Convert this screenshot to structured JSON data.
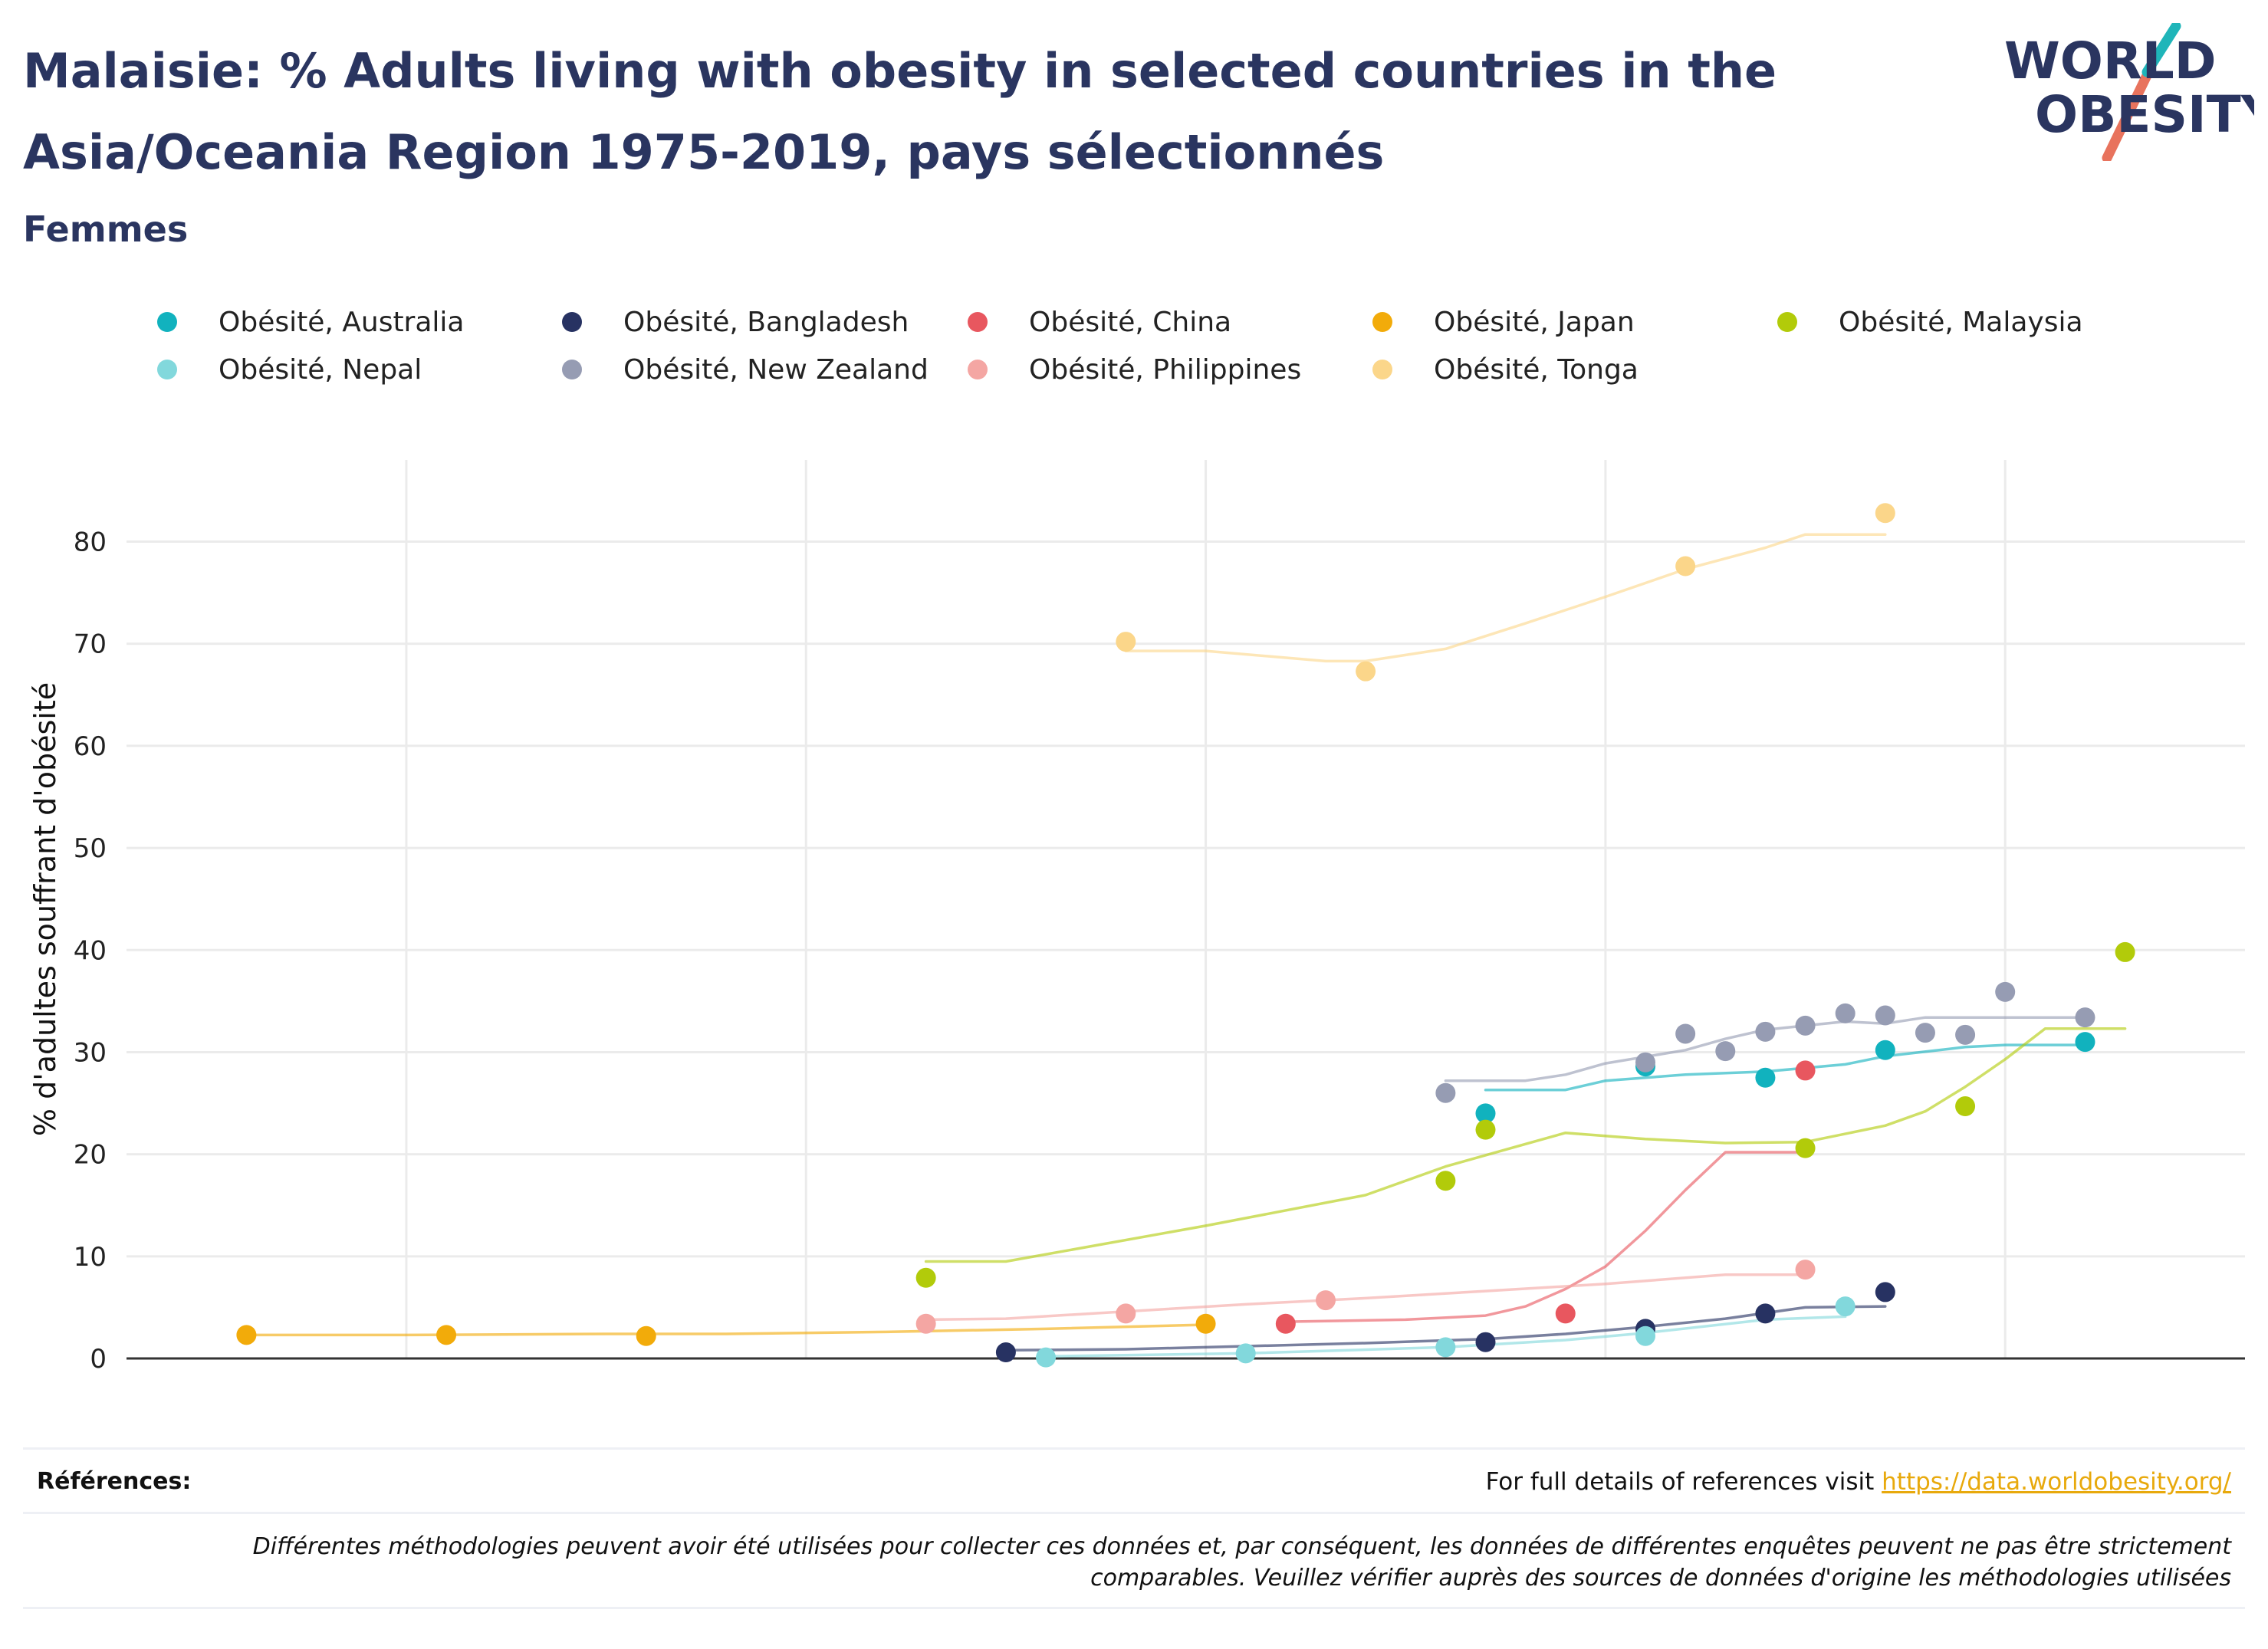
{
  "header": {
    "title": "Malaisie: % Adults living with obesity in selected countries in the Asia/Oceania Region 1975-2019, pays sélectionnés",
    "subtitle": "Femmes",
    "logo_line1": "WORLD",
    "logo_line2": "OBESITY"
  },
  "colors": {
    "title": "#2a3560",
    "logo_teal": "#1fb5b9",
    "logo_coral": "#e8735d",
    "link": "#e8a90c"
  },
  "chart_data": {
    "type": "scatter",
    "title": "",
    "xlabel": "",
    "ylabel": "% d'adultes souffrant d'obésité",
    "xlim": [
      1973,
      2026
    ],
    "ylim": [
      0,
      88
    ],
    "xticks": [
      1980,
      1990,
      2000,
      2010,
      2020
    ],
    "yticks": [
      0,
      10,
      20,
      30,
      40,
      50,
      60,
      70,
      80
    ],
    "grid": true,
    "legend_position": "top",
    "series": [
      {
        "name": "Obésité, Australia",
        "color": "#11b2be",
        "points": [
          [
            2007,
            24.0
          ],
          [
            2011,
            28.6
          ],
          [
            2014,
            27.5
          ],
          [
            2017,
            30.2
          ],
          [
            2022,
            31.0
          ]
        ],
        "trend": [
          [
            2007,
            26.3
          ],
          [
            2009,
            26.3
          ],
          [
            2010,
            27.2
          ],
          [
            2012,
            27.8
          ],
          [
            2014,
            28.1
          ],
          [
            2016,
            28.8
          ],
          [
            2017,
            29.6
          ],
          [
            2019,
            30.5
          ],
          [
            2020,
            30.7
          ],
          [
            2022,
            30.7
          ]
        ]
      },
      {
        "name": "Obésité, Bangladesh",
        "color": "#273262",
        "points": [
          [
            1995,
            0.6
          ],
          [
            2007,
            1.6
          ],
          [
            2011,
            2.9
          ],
          [
            2014,
            4.4
          ],
          [
            2017,
            6.5
          ]
        ],
        "trend": [
          [
            1995,
            0.8
          ],
          [
            1998,
            0.9
          ],
          [
            2001,
            1.2
          ],
          [
            2004,
            1.5
          ],
          [
            2007,
            1.9
          ],
          [
            2009,
            2.4
          ],
          [
            2011,
            3.1
          ],
          [
            2013,
            3.9
          ],
          [
            2015,
            5.0
          ],
          [
            2017,
            5.1
          ]
        ]
      },
      {
        "name": "Obésité, China",
        "color": "#e8575f",
        "points": [
          [
            2002,
            3.4
          ],
          [
            2009,
            4.4
          ],
          [
            2015,
            28.2
          ]
        ],
        "trend": [
          [
            2002,
            3.6
          ],
          [
            2005,
            3.8
          ],
          [
            2007,
            4.2
          ],
          [
            2008,
            5.1
          ],
          [
            2009,
            6.8
          ],
          [
            2010,
            9.0
          ],
          [
            2011,
            12.5
          ],
          [
            2012,
            16.5
          ],
          [
            2013,
            20.2
          ],
          [
            2015,
            20.2
          ]
        ]
      },
      {
        "name": "Obésité, Japan",
        "color": "#f2ab0a",
        "points": [
          [
            1976,
            2.3
          ],
          [
            1981,
            2.3
          ],
          [
            1986,
            2.2
          ],
          [
            2000,
            3.4
          ]
        ],
        "trend": [
          [
            1976,
            2.3
          ],
          [
            1980,
            2.3
          ],
          [
            1985,
            2.4
          ],
          [
            1988,
            2.4
          ],
          [
            1992,
            2.6
          ],
          [
            1996,
            2.9
          ],
          [
            2000,
            3.3
          ]
        ]
      },
      {
        "name": "Obésité, Malaysia",
        "color": "#b2cb0a",
        "points": [
          [
            1993,
            7.9
          ],
          [
            2006,
            17.4
          ],
          [
            2007,
            22.4
          ],
          [
            2015,
            20.6
          ],
          [
            2019,
            24.7
          ],
          [
            2023,
            39.8
          ]
        ],
        "trend": [
          [
            1993,
            9.5
          ],
          [
            1995,
            9.5
          ],
          [
            2000,
            13.0
          ],
          [
            2004,
            16.0
          ],
          [
            2006,
            18.8
          ],
          [
            2008,
            21.0
          ],
          [
            2009,
            22.1
          ],
          [
            2011,
            21.5
          ],
          [
            2013,
            21.1
          ],
          [
            2015,
            21.2
          ],
          [
            2017,
            22.8
          ],
          [
            2018,
            24.2
          ],
          [
            2019,
            26.6
          ],
          [
            2020,
            29.3
          ],
          [
            2021,
            32.3
          ],
          [
            2023,
            32.3
          ]
        ]
      },
      {
        "name": "Obésité, Nepal",
        "color": "#82d8dc",
        "points": [
          [
            1996,
            0.1
          ],
          [
            2001,
            0.5
          ],
          [
            2006,
            1.1
          ],
          [
            2011,
            2.2
          ],
          [
            2016,
            5.1
          ]
        ],
        "trend": [
          [
            1996,
            0.2
          ],
          [
            2001,
            0.5
          ],
          [
            2006,
            1.1
          ],
          [
            2009,
            1.8
          ],
          [
            2011,
            2.5
          ],
          [
            2014,
            3.8
          ],
          [
            2016,
            4.1
          ]
        ]
      },
      {
        "name": "Obésité, New Zealand",
        "color": "#969cb3",
        "points": [
          [
            2006,
            26.0
          ],
          [
            2011,
            29.0
          ],
          [
            2012,
            31.8
          ],
          [
            2013,
            30.1
          ],
          [
            2014,
            32.0
          ],
          [
            2015,
            32.6
          ],
          [
            2016,
            33.8
          ],
          [
            2017,
            33.6
          ],
          [
            2018,
            31.9
          ],
          [
            2019,
            31.7
          ],
          [
            2020,
            35.9
          ],
          [
            2022,
            33.4
          ]
        ],
        "trend": [
          [
            2006,
            27.2
          ],
          [
            2008,
            27.2
          ],
          [
            2009,
            27.8
          ],
          [
            2010,
            28.9
          ],
          [
            2012,
            30.2
          ],
          [
            2013,
            31.3
          ],
          [
            2014,
            32.2
          ],
          [
            2016,
            33.0
          ],
          [
            2017,
            32.8
          ],
          [
            2018,
            33.4
          ],
          [
            2020,
            33.4
          ],
          [
            2022,
            33.4
          ]
        ]
      },
      {
        "name": "Obésité, Philippines",
        "color": "#f4a6a3",
        "points": [
          [
            1993,
            3.4
          ],
          [
            1998,
            4.4
          ],
          [
            2003,
            5.7
          ],
          [
            2015,
            8.7
          ]
        ],
        "trend": [
          [
            1993,
            3.8
          ],
          [
            1995,
            3.9
          ],
          [
            1998,
            4.6
          ],
          [
            2001,
            5.3
          ],
          [
            2004,
            5.9
          ],
          [
            2007,
            6.6
          ],
          [
            2010,
            7.3
          ],
          [
            2013,
            8.2
          ],
          [
            2015,
            8.2
          ]
        ]
      },
      {
        "name": "Obésité, Tonga",
        "color": "#fbd68a",
        "points": [
          [
            1998,
            70.2
          ],
          [
            2004,
            67.3
          ],
          [
            2012,
            77.6
          ],
          [
            2017,
            82.8
          ]
        ],
        "trend": [
          [
            1998,
            69.3
          ],
          [
            2000,
            69.3
          ],
          [
            2003,
            68.3
          ],
          [
            2004,
            68.3
          ],
          [
            2006,
            69.5
          ],
          [
            2008,
            72.0
          ],
          [
            2010,
            74.6
          ],
          [
            2012,
            77.3
          ],
          [
            2014,
            79.4
          ],
          [
            2015,
            80.7
          ],
          [
            2017,
            80.7
          ]
        ]
      }
    ]
  },
  "footer": {
    "references_label": "Références:",
    "references_text": "For full details of references visit ",
    "references_link": "https://data.worldobesity.org/",
    "note": "Différentes méthodologies peuvent avoir été utilisées pour collecter ces données et, par conséquent, les données de différentes enquêtes peuvent ne pas être strictement comparables. Veuillez vérifier auprès des sources de données d'origine les méthodologies utilisées"
  }
}
